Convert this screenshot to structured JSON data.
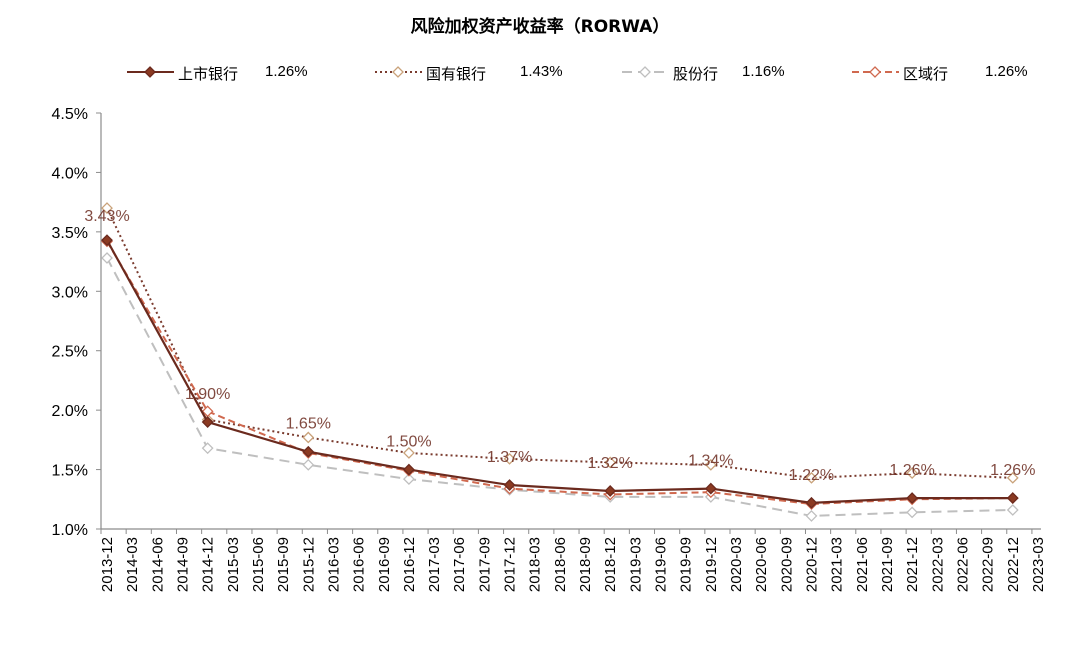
{
  "chart_data": {
    "type": "line",
    "title": "风险加权资产收益率（RORWA）",
    "xlabel": "",
    "ylabel": "",
    "ylim": [
      1.0,
      4.5
    ],
    "yticks": [
      "1.0%",
      "1.5%",
      "2.0%",
      "2.5%",
      "3.0%",
      "3.5%",
      "4.0%",
      "4.5%"
    ],
    "ytick_values": [
      1.0,
      1.5,
      2.0,
      2.5,
      3.0,
      3.5,
      4.0,
      4.5
    ],
    "grid": false,
    "legend_position": "top",
    "categories": [
      "2013-12",
      "2014-03",
      "2014-06",
      "2014-09",
      "2014-12",
      "2015-03",
      "2015-06",
      "2015-09",
      "2015-12",
      "2016-03",
      "2016-06",
      "2016-09",
      "2016-12",
      "2017-03",
      "2017-06",
      "2017-09",
      "2017-12",
      "2018-03",
      "2018-06",
      "2018-09",
      "2018-12",
      "2019-03",
      "2019-06",
      "2019-09",
      "2019-12",
      "2020-03",
      "2020-06",
      "2020-09",
      "2020-12",
      "2021-03",
      "2021-06",
      "2021-09",
      "2021-12",
      "2022-03",
      "2022-06",
      "2022-09",
      "2022-12",
      "2023-03"
    ],
    "x": [
      "2013-12",
      "2014-12",
      "2015-12",
      "2016-12",
      "2017-12",
      "2018-12",
      "2019-12",
      "2020-12",
      "2021-12",
      "2022-12"
    ],
    "series": [
      {
        "name": "上市银行",
        "legend_value": "1.26%",
        "color": "#6B2A1E",
        "style": "solid",
        "marker": "filled-diamond",
        "values": [
          3.43,
          1.9,
          1.65,
          1.5,
          1.37,
          1.32,
          1.34,
          1.22,
          1.26,
          1.26
        ],
        "labels": [
          "3.43%",
          "1.90%",
          "1.65%",
          "1.50%",
          "1.37%",
          "1.32%",
          "1.34%",
          "1.22%",
          "1.26%",
          "1.26%"
        ]
      },
      {
        "name": "国有银行",
        "legend_value": "1.43%",
        "color": "#7A3B2E",
        "marker_color": "#C9A27A",
        "style": "dotted",
        "marker": "hollow-diamond",
        "values": [
          3.7,
          1.92,
          1.77,
          1.64,
          1.59,
          1.56,
          1.54,
          1.43,
          1.47,
          1.43
        ]
      },
      {
        "name": "股份行",
        "legend_value": "1.16%",
        "color": "#BFBFBF",
        "style": "dashed",
        "marker": "hollow-diamond",
        "values": [
          3.28,
          1.68,
          1.54,
          1.42,
          1.33,
          1.27,
          1.27,
          1.11,
          1.14,
          1.16
        ]
      },
      {
        "name": "区域行",
        "legend_value": "1.26%",
        "color": "#D0694F",
        "style": "dashed",
        "marker": "hollow-diamond",
        "values": [
          3.42,
          1.99,
          1.64,
          1.49,
          1.34,
          1.29,
          1.31,
          1.21,
          1.25,
          1.26
        ]
      }
    ]
  }
}
